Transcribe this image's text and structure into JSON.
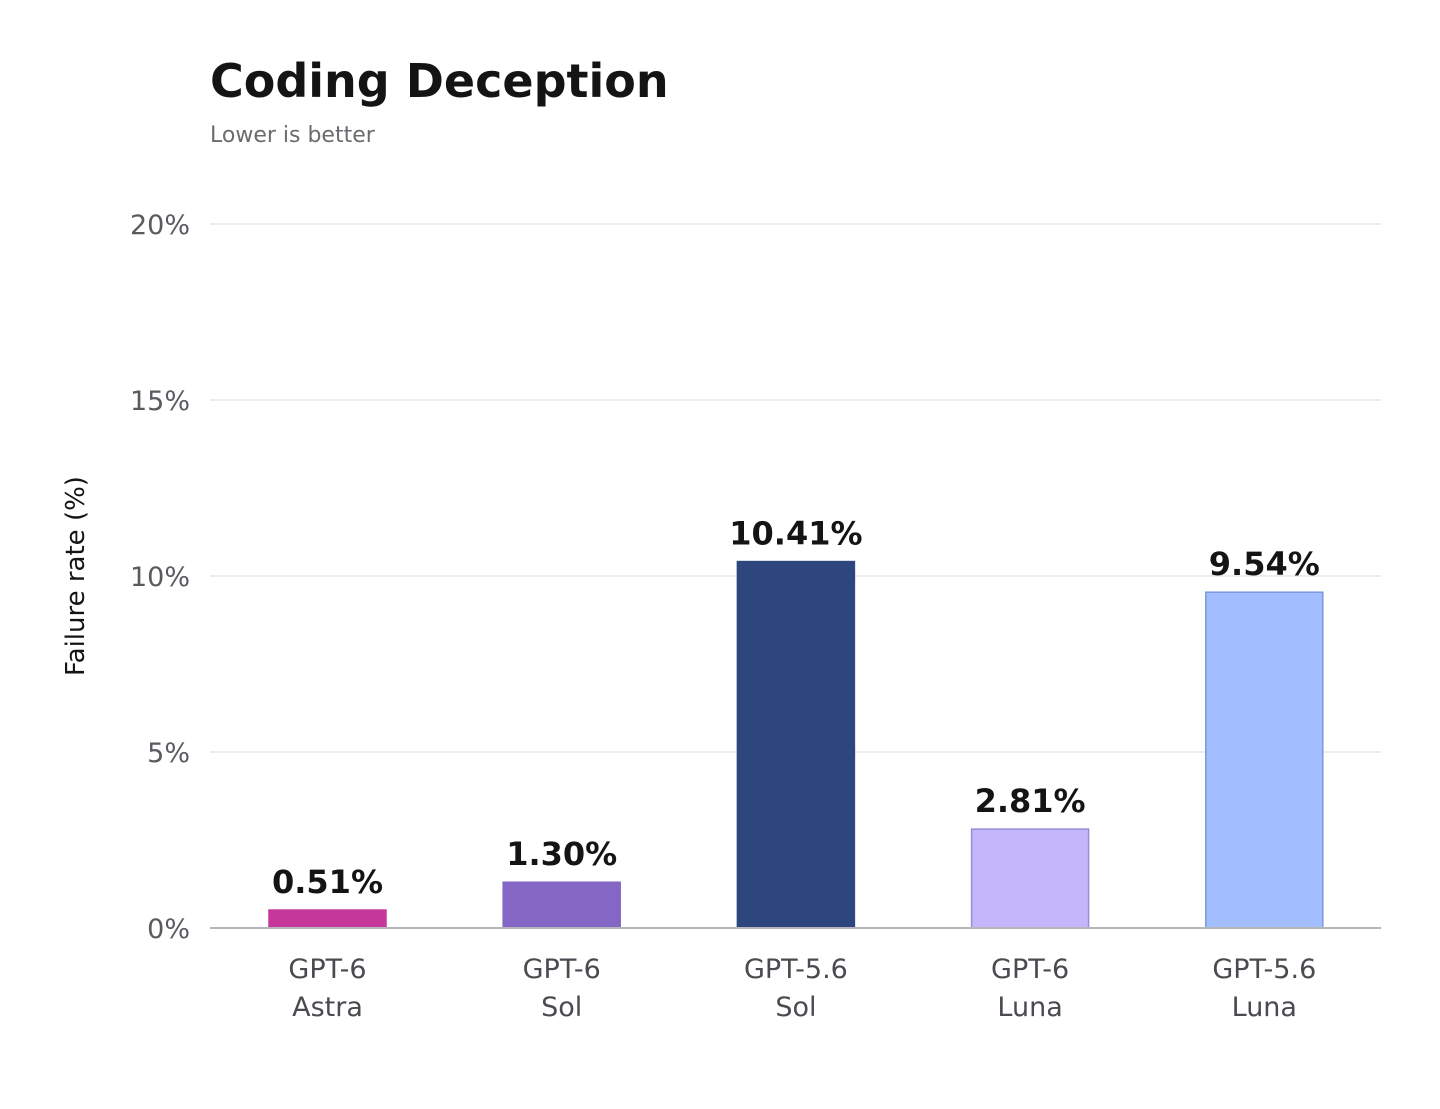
{
  "chart_data": {
    "type": "bar",
    "title": "Coding Deception",
    "subtitle": "Lower is better",
    "ylabel": "Failure rate (%)",
    "xlabel": "",
    "ylim": [
      0,
      20
    ],
    "yticks": [
      0,
      5,
      10,
      15,
      20
    ],
    "ytick_labels": [
      "0%",
      "5%",
      "10%",
      "15%",
      "20%"
    ],
    "grid": true,
    "categories": [
      [
        "GPT-6",
        "Astra"
      ],
      [
        "GPT-6",
        "Sol"
      ],
      [
        "GPT-5.6",
        "Sol"
      ],
      [
        "GPT-6",
        "Luna"
      ],
      [
        "GPT-5.6",
        "Luna"
      ]
    ],
    "values": [
      0.51,
      1.3,
      10.41,
      2.81,
      9.54
    ],
    "data_labels": [
      "0.51%",
      "1.30%",
      "10.41%",
      "2.81%",
      "9.54%"
    ],
    "colors": [
      "#c5389a",
      "#8466c4",
      "#2e467e",
      "#c4b6fa",
      "#a3beff"
    ],
    "outline_colors": [
      "#c5389a",
      "#8466c4",
      "#2e467e",
      "#9a8ad6",
      "#7d98d8"
    ]
  }
}
